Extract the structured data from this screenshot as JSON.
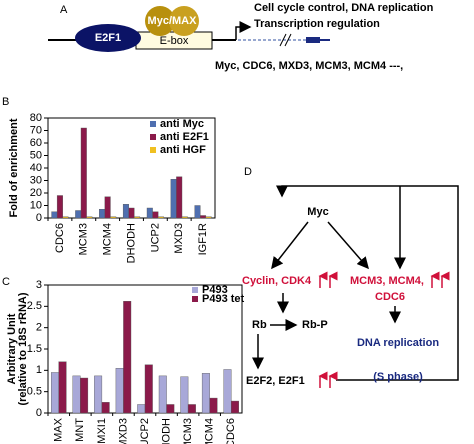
{
  "panel_a": {
    "label": "A",
    "protein_1": "E2F1",
    "protein_2": "Myc/MAX",
    "element": "E-box",
    "function_1": "Cell cycle control, DNA replication",
    "function_2": "Transcription regulation",
    "targets": "Myc, CDC6, MXD3, MCM3, MCM4  ---,"
  },
  "chart_data": [
    {
      "type": "bar",
      "panel_label": "B",
      "y_label": "Fold of enrichment",
      "categories": [
        "CDC6",
        "MCM3",
        "MCM4",
        "DHODH",
        "UCP2",
        "MXD3",
        "IGF1R"
      ],
      "series": [
        {
          "name": "anti Myc",
          "color": "#4f6fb0",
          "values": [
            5,
            6,
            7,
            11,
            8,
            31,
            10
          ]
        },
        {
          "name": "anti E2F1",
          "color": "#8b1a4a",
          "values": [
            18,
            72,
            17,
            8,
            5,
            33,
            2
          ]
        },
        {
          "name": "anti HGF",
          "color": "#f0c020",
          "values": [
            1,
            1,
            1,
            1,
            1,
            1,
            1
          ]
        }
      ],
      "ylim": [
        0,
        80
      ],
      "yticks": [
        0,
        10,
        20,
        30,
        40,
        50,
        60,
        70,
        80
      ],
      "grid": false
    },
    {
      "type": "bar",
      "panel_label": "C",
      "y_label": [
        "Arbitrary Unit",
        "(relative to 18S rRNA)"
      ],
      "categories": [
        "MAX",
        "MNT",
        "MXI1",
        "MXD3",
        "UCP2",
        "DHODH",
        "MCM3",
        "MCM4",
        "CDC6"
      ],
      "series": [
        {
          "name": "P493",
          "color": "#a8a8d8",
          "values": [
            0.95,
            0.87,
            0.87,
            1.05,
            0.2,
            0.87,
            0.85,
            0.93,
            1.02
          ]
        },
        {
          "name": "P493 tet",
          "color": "#8b1a4a",
          "values": [
            1.2,
            0.82,
            0.25,
            2.62,
            1.13,
            0.2,
            0.2,
            0.35,
            0.28
          ]
        }
      ],
      "ylim": [
        0,
        3
      ],
      "yticks": [
        0,
        0.5,
        1,
        1.5,
        2,
        2.5,
        3
      ],
      "grid": false
    }
  ],
  "panel_d": {
    "label": "D",
    "myc": "Myc",
    "cyclin": "Cyclin, CDK4",
    "mcm_1": "MCM3, MCM4,",
    "mcm_2": "CDC6",
    "rb": "Rb",
    "rbp": "Rb-P",
    "dna_1": "DNA replication",
    "dna_2": "(S phase)",
    "e2f": "E2F2, E2F1"
  }
}
